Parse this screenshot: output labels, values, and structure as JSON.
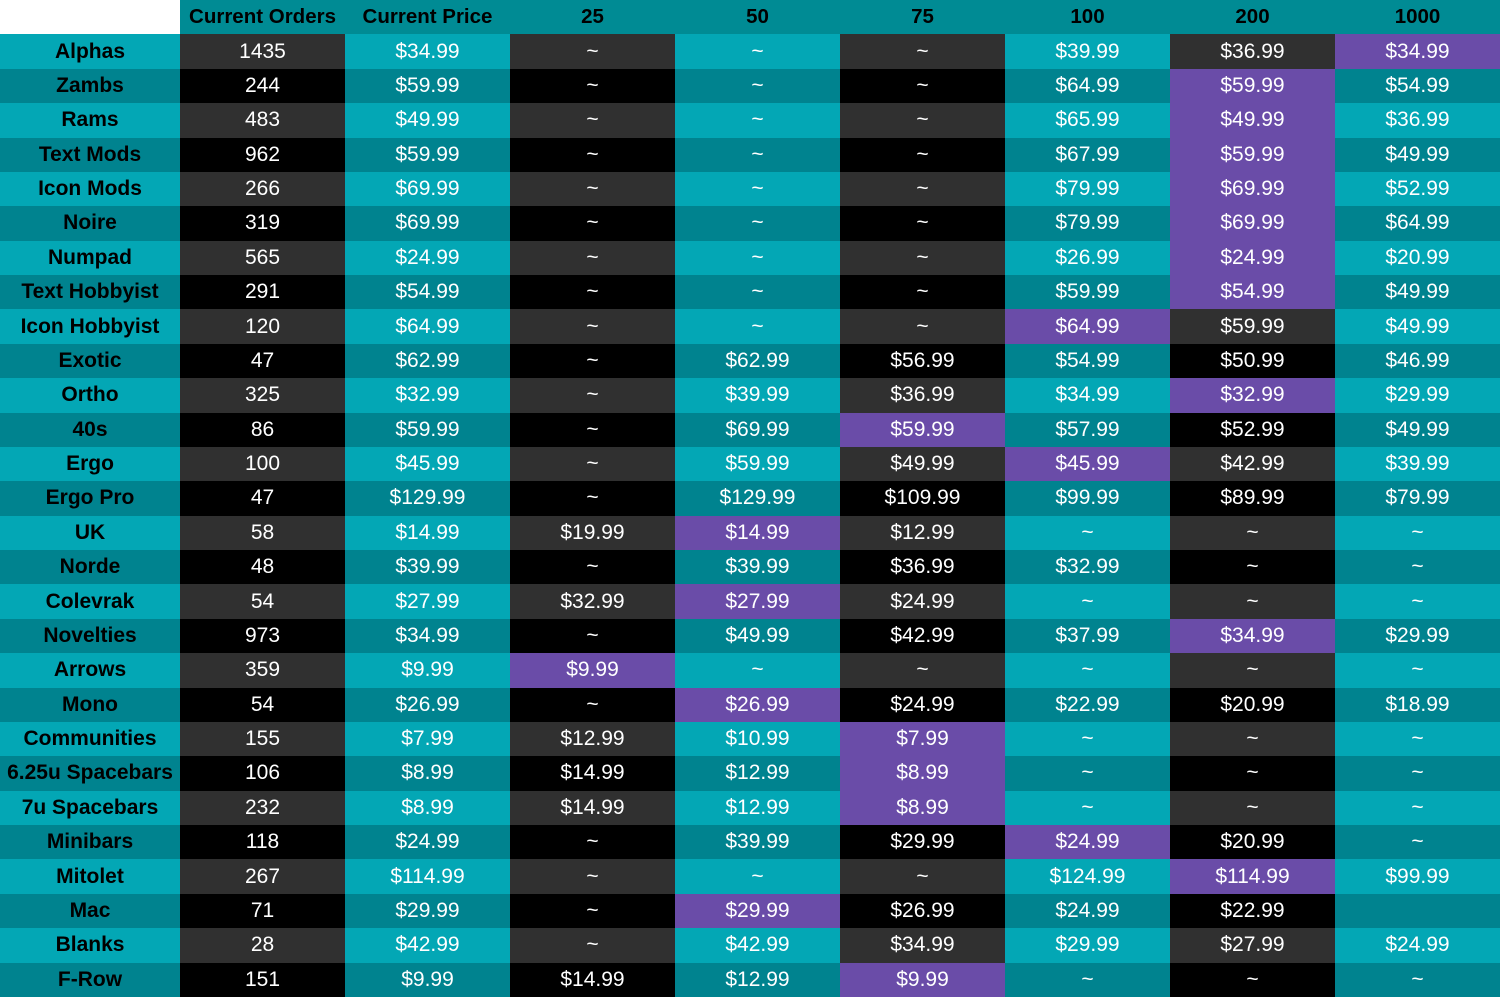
{
  "colors": {
    "light_teal": "#03a7b5",
    "teal": "#00838f",
    "header_teal": "#008b94",
    "dark_gray": "#303030",
    "black": "#000000",
    "purple_best_price": "#6a4ca8"
  },
  "headers": [
    "",
    "Current Orders",
    "Current Price",
    "25",
    "50",
    "75",
    "100",
    "200",
    "1000"
  ],
  "rows": [
    {
      "name": "Alphas",
      "orders": "1435",
      "current_price": "$34.99",
      "tiers": [
        "~",
        "~",
        "~",
        "$39.99",
        "$36.99",
        "$34.99"
      ],
      "best_tier": "1000"
    },
    {
      "name": "Zambs",
      "orders": "244",
      "current_price": "$59.99",
      "tiers": [
        "~",
        "~",
        "~",
        "$64.99",
        "$59.99",
        "$54.99"
      ],
      "best_tier": "200"
    },
    {
      "name": "Rams",
      "orders": "483",
      "current_price": "$49.99",
      "tiers": [
        "~",
        "~",
        "~",
        "$65.99",
        "$49.99",
        "$36.99"
      ],
      "best_tier": "200"
    },
    {
      "name": "Text Mods",
      "orders": "962",
      "current_price": "$59.99",
      "tiers": [
        "~",
        "~",
        "~",
        "$67.99",
        "$59.99",
        "$49.99"
      ],
      "best_tier": "200"
    },
    {
      "name": "Icon Mods",
      "orders": "266",
      "current_price": "$69.99",
      "tiers": [
        "~",
        "~",
        "~",
        "$79.99",
        "$69.99",
        "$52.99"
      ],
      "best_tier": "200"
    },
    {
      "name": "Noire",
      "orders": "319",
      "current_price": "$69.99",
      "tiers": [
        "~",
        "~",
        "~",
        "$79.99",
        "$69.99",
        "$64.99"
      ],
      "best_tier": "200"
    },
    {
      "name": "Numpad",
      "orders": "565",
      "current_price": "$24.99",
      "tiers": [
        "~",
        "~",
        "~",
        "$26.99",
        "$24.99",
        "$20.99"
      ],
      "best_tier": "200"
    },
    {
      "name": "Text Hobbyist",
      "orders": "291",
      "current_price": "$54.99",
      "tiers": [
        "~",
        "~",
        "~",
        "$59.99",
        "$54.99",
        "$49.99"
      ],
      "best_tier": "200"
    },
    {
      "name": "Icon Hobbyist",
      "orders": "120",
      "current_price": "$64.99",
      "tiers": [
        "~",
        "~",
        "~",
        "$64.99",
        "$59.99",
        "$49.99"
      ],
      "best_tier": "100"
    },
    {
      "name": "Exotic",
      "orders": "47",
      "current_price": "$62.99",
      "tiers": [
        "~",
        "$62.99",
        "$56.99",
        "$54.99",
        "$50.99",
        "$46.99"
      ],
      "best_tier": ""
    },
    {
      "name": "Ortho",
      "orders": "325",
      "current_price": "$32.99",
      "tiers": [
        "~",
        "$39.99",
        "$36.99",
        "$34.99",
        "$32.99",
        "$29.99"
      ],
      "best_tier": "200"
    },
    {
      "name": "40s",
      "orders": "86",
      "current_price": "$59.99",
      "tiers": [
        "~",
        "$69.99",
        "$59.99",
        "$57.99",
        "$52.99",
        "$49.99"
      ],
      "best_tier": "75"
    },
    {
      "name": "Ergo",
      "orders": "100",
      "current_price": "$45.99",
      "tiers": [
        "~",
        "$59.99",
        "$49.99",
        "$45.99",
        "$42.99",
        "$39.99"
      ],
      "best_tier": "100"
    },
    {
      "name": "Ergo Pro",
      "orders": "47",
      "current_price": "$129.99",
      "tiers": [
        "~",
        "$129.99",
        "$109.99",
        "$99.99",
        "$89.99",
        "$79.99"
      ],
      "best_tier": ""
    },
    {
      "name": "UK",
      "orders": "58",
      "current_price": "$14.99",
      "tiers": [
        "$19.99",
        "$14.99",
        "$12.99",
        "~",
        "~",
        "~"
      ],
      "best_tier": "50"
    },
    {
      "name": "Norde",
      "orders": "48",
      "current_price": "$39.99",
      "tiers": [
        "~",
        "$39.99",
        "$36.99",
        "$32.99",
        "~",
        "~"
      ],
      "best_tier": ""
    },
    {
      "name": "Colevrak",
      "orders": "54",
      "current_price": "$27.99",
      "tiers": [
        "$32.99",
        "$27.99",
        "$24.99",
        "~",
        "~",
        "~"
      ],
      "best_tier": "50"
    },
    {
      "name": "Novelties",
      "orders": "973",
      "current_price": "$34.99",
      "tiers": [
        "~",
        "$49.99",
        "$42.99",
        "$37.99",
        "$34.99",
        "$29.99"
      ],
      "best_tier": "200"
    },
    {
      "name": "Arrows",
      "orders": "359",
      "current_price": "$9.99",
      "tiers": [
        "$9.99",
        "~",
        "~",
        "~",
        "~",
        "~"
      ],
      "best_tier": "25"
    },
    {
      "name": "Mono",
      "orders": "54",
      "current_price": "$26.99",
      "tiers": [
        "~",
        "$26.99",
        "$24.99",
        "$22.99",
        "$20.99",
        "$18.99"
      ],
      "best_tier": "50"
    },
    {
      "name": "Communities",
      "orders": "155",
      "current_price": "$7.99",
      "tiers": [
        "$12.99",
        "$10.99",
        "$7.99",
        "~",
        "~",
        "~"
      ],
      "best_tier": "75"
    },
    {
      "name": "6.25u Spacebars",
      "orders": "106",
      "current_price": "$8.99",
      "tiers": [
        "$14.99",
        "$12.99",
        "$8.99",
        "~",
        "~",
        "~"
      ],
      "best_tier": "75"
    },
    {
      "name": "7u Spacebars",
      "orders": "232",
      "current_price": "$8.99",
      "tiers": [
        "$14.99",
        "$12.99",
        "$8.99",
        "~",
        "~",
        "~"
      ],
      "best_tier": "75"
    },
    {
      "name": "Minibars",
      "orders": "118",
      "current_price": "$24.99",
      "tiers": [
        "~",
        "$39.99",
        "$29.99",
        "$24.99",
        "$20.99",
        "~"
      ],
      "best_tier": "100"
    },
    {
      "name": "Mitolet",
      "orders": "267",
      "current_price": "$114.99",
      "tiers": [
        "~",
        "~",
        "~",
        "$124.99",
        "$114.99",
        "$99.99"
      ],
      "best_tier": "200"
    },
    {
      "name": "Mac",
      "orders": "71",
      "current_price": "$29.99",
      "tiers": [
        "~",
        "$29.99",
        "$26.99",
        "$24.99",
        "$22.99",
        ""
      ],
      "best_tier": "50"
    },
    {
      "name": "Blanks",
      "orders": "28",
      "current_price": "$42.99",
      "tiers": [
        "~",
        "$42.99",
        "$34.99",
        "$29.99",
        "$27.99",
        "$24.99"
      ],
      "best_tier": ""
    },
    {
      "name": "F-Row",
      "orders": "151",
      "current_price": "$9.99",
      "tiers": [
        "$14.99",
        "$12.99",
        "$9.99",
        "~",
        "~",
        "~"
      ],
      "best_tier": "75"
    }
  ]
}
